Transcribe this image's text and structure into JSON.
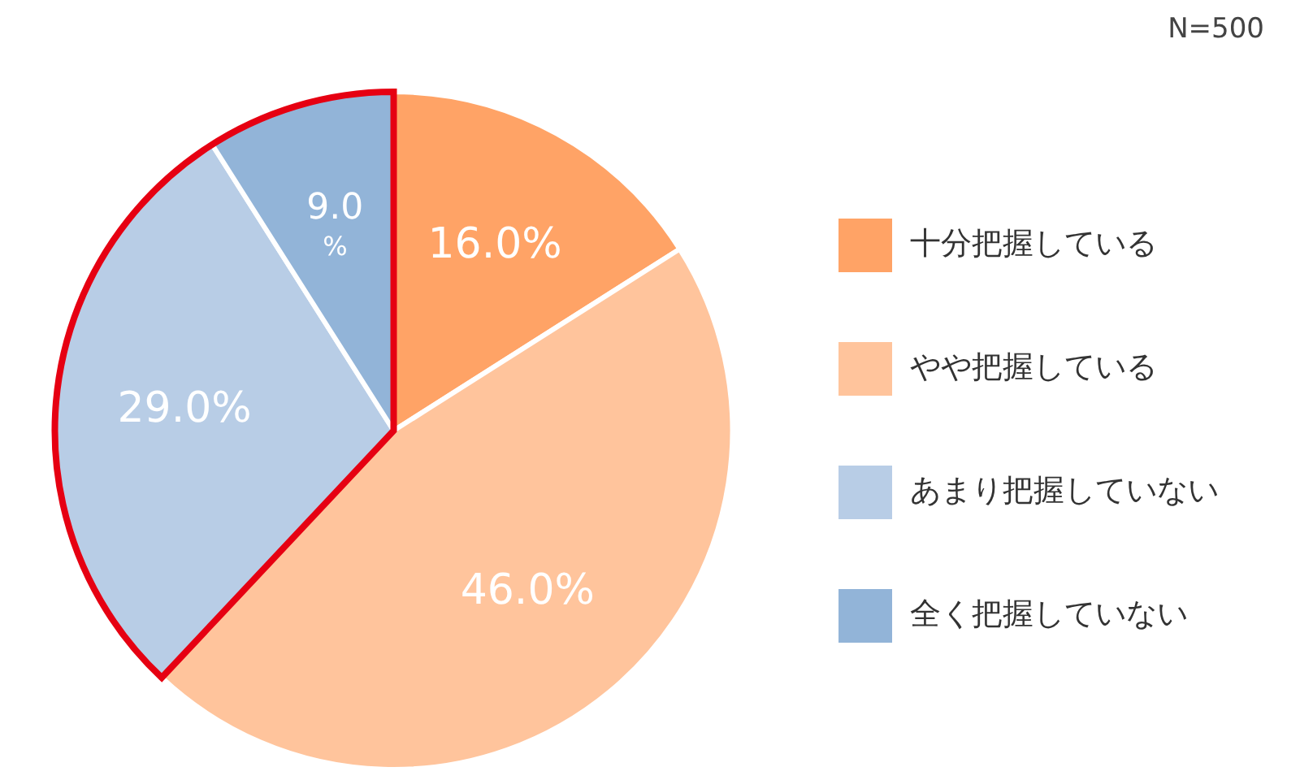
{
  "chart_data": {
    "type": "pie",
    "categories": [
      "十分把握している",
      "やや把握している",
      "あまり把握していない",
      "全く把握していない"
    ],
    "values": [
      16,
      46,
      29,
      9
    ],
    "colors": [
      "#ffa366",
      "#ffc49c",
      "#b8cde6",
      "#92b4d8"
    ],
    "value_labels": [
      "16.0%",
      "46.0%",
      "29.0%",
      "9.0%"
    ],
    "annotations": [
      "N=500"
    ],
    "legend": "right"
  }
}
